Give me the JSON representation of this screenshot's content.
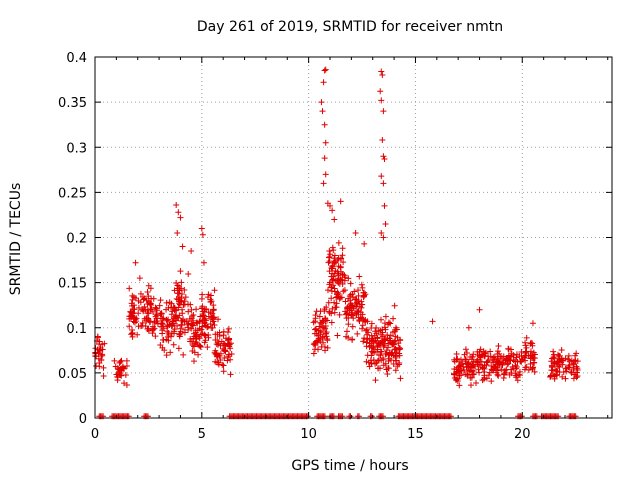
{
  "chart_data": {
    "type": "scatter",
    "title": "Day 261 of 2019, SRMTID for receiver nmtn",
    "xlabel": "GPS time / hours",
    "ylabel": "SRMTID / TECUs",
    "xlim": [
      0,
      24.2
    ],
    "ylim": [
      0,
      0.4
    ],
    "x_ticks": [
      0,
      5,
      10,
      15,
      20
    ],
    "x_tick_labels": [
      "0",
      "5",
      "10",
      "15",
      "20"
    ],
    "y_ticks": [
      0,
      0.05,
      0.1,
      0.15,
      0.2,
      0.25,
      0.3,
      0.35,
      0.4
    ],
    "y_tick_labels": [
      "0",
      "0.05",
      "0.1",
      "0.15",
      "0.2",
      "0.25",
      "0.3",
      "0.35",
      "0.4"
    ],
    "grid": true,
    "marker": "+",
    "series": [
      {
        "name": "SRMTID",
        "color": "#e00000",
        "clusters": [
          {
            "x_range": [
              0.0,
              0.45
            ],
            "y_center": 0.072,
            "y_spread": 0.018,
            "count": 30
          },
          {
            "x_range": [
              0.9,
              1.5
            ],
            "y_center": 0.05,
            "y_spread": 0.015,
            "count": 30
          },
          {
            "x_range": [
              1.6,
              2.8
            ],
            "y_center": 0.115,
            "y_spread": 0.025,
            "count": 90
          },
          {
            "x_range": [
              2.8,
              3.7
            ],
            "y_center": 0.105,
            "y_spread": 0.025,
            "count": 70
          },
          {
            "x_range": [
              3.7,
              4.4
            ],
            "y_center": 0.12,
            "y_spread": 0.035,
            "count": 70
          },
          {
            "x_range": [
              4.4,
              5.0
            ],
            "y_center": 0.095,
            "y_spread": 0.025,
            "count": 50
          },
          {
            "x_range": [
              5.0,
              5.6
            ],
            "y_center": 0.11,
            "y_spread": 0.03,
            "count": 60
          },
          {
            "x_range": [
              5.6,
              6.4
            ],
            "y_center": 0.08,
            "y_spread": 0.025,
            "count": 60
          },
          {
            "x_range": [
              10.2,
              10.9
            ],
            "y_center": 0.095,
            "y_spread": 0.03,
            "count": 60
          },
          {
            "x_range": [
              10.9,
              11.7
            ],
            "y_center": 0.15,
            "y_spread": 0.04,
            "count": 90
          },
          {
            "x_range": [
              11.7,
              12.7
            ],
            "y_center": 0.12,
            "y_spread": 0.035,
            "count": 90
          },
          {
            "x_range": [
              12.7,
              13.6
            ],
            "y_center": 0.08,
            "y_spread": 0.025,
            "count": 90
          },
          {
            "x_range": [
              13.6,
              14.3
            ],
            "y_center": 0.08,
            "y_spread": 0.03,
            "count": 70
          },
          {
            "x_range": [
              16.8,
              17.6
            ],
            "y_center": 0.055,
            "y_spread": 0.015,
            "count": 60
          },
          {
            "x_range": [
              17.6,
              18.8
            ],
            "y_center": 0.06,
            "y_spread": 0.018,
            "count": 80
          },
          {
            "x_range": [
              18.8,
              20.0
            ],
            "y_center": 0.06,
            "y_spread": 0.018,
            "count": 80
          },
          {
            "x_range": [
              20.0,
              20.6
            ],
            "y_center": 0.07,
            "y_spread": 0.02,
            "count": 40
          },
          {
            "x_range": [
              21.3,
              22.6
            ],
            "y_center": 0.058,
            "y_spread": 0.016,
            "count": 80
          }
        ],
        "outliers": [
          [
            3.8,
            0.236
          ],
          [
            3.9,
            0.228
          ],
          [
            4.0,
            0.222
          ],
          [
            3.85,
            0.205
          ],
          [
            4.1,
            0.19
          ],
          [
            5.0,
            0.21
          ],
          [
            5.05,
            0.203
          ],
          [
            5.1,
            0.172
          ],
          [
            4.5,
            0.185
          ],
          [
            1.9,
            0.172
          ],
          [
            2.1,
            0.155
          ],
          [
            10.9,
            0.238
          ],
          [
            11.0,
            0.235
          ],
          [
            11.1,
            0.23
          ],
          [
            11.2,
            0.22
          ],
          [
            11.5,
            0.24
          ],
          [
            12.2,
            0.205
          ],
          [
            12.6,
            0.193
          ],
          [
            10.75,
            0.385
          ],
          [
            10.8,
            0.386
          ],
          [
            10.7,
            0.372
          ],
          [
            10.6,
            0.35
          ],
          [
            10.65,
            0.34
          ],
          [
            10.75,
            0.325
          ],
          [
            10.8,
            0.305
          ],
          [
            10.75,
            0.288
          ],
          [
            10.8,
            0.27
          ],
          [
            10.7,
            0.26
          ],
          [
            13.4,
            0.384
          ],
          [
            13.45,
            0.38
          ],
          [
            13.35,
            0.362
          ],
          [
            13.4,
            0.352
          ],
          [
            13.5,
            0.34
          ],
          [
            13.45,
            0.308
          ],
          [
            13.5,
            0.29
          ],
          [
            13.55,
            0.287
          ],
          [
            13.4,
            0.268
          ],
          [
            13.5,
            0.26
          ],
          [
            13.55,
            0.235
          ],
          [
            13.6,
            0.215
          ],
          [
            13.4,
            0.205
          ],
          [
            13.5,
            0.2
          ],
          [
            15.8,
            0.107
          ],
          [
            17.5,
            0.1
          ],
          [
            18.0,
            0.12
          ],
          [
            20.5,
            0.105
          ]
        ],
        "zero_segments": [
          [
            0.2,
            0.4
          ],
          [
            0.8,
            1.6
          ],
          [
            2.3,
            2.5
          ],
          [
            6.3,
            10.0
          ],
          [
            10.4,
            10.8
          ],
          [
            11.0,
            11.2
          ],
          [
            11.4,
            11.6
          ],
          [
            11.9,
            12.0
          ],
          [
            12.3,
            12.4
          ],
          [
            12.9,
            13.0
          ],
          [
            13.3,
            13.5
          ],
          [
            14.2,
            16.7
          ],
          [
            19.8,
            20.0
          ],
          [
            20.5,
            20.7
          ],
          [
            20.9,
            21.7
          ],
          [
            22.2,
            22.5
          ]
        ]
      }
    ]
  }
}
